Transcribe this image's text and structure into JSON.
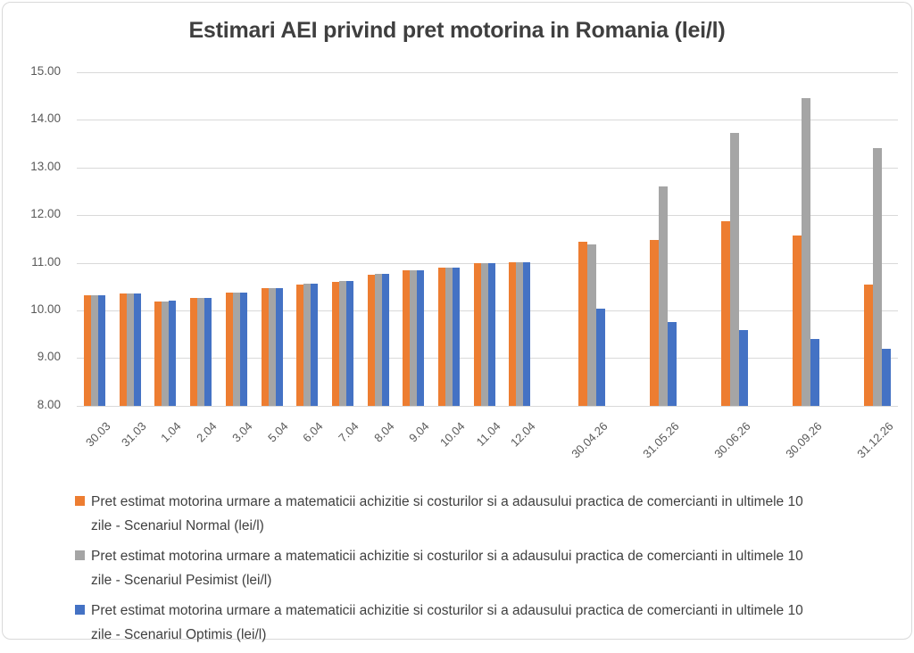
{
  "chart": {
    "title": "Estimari AEI privind pret motorina in Romania (lei/l)"
  },
  "chart_data": {
    "type": "bar",
    "title": "Estimari AEI privind pret motorina in Romania (lei/l)",
    "xlabel": "",
    "ylabel": "",
    "ylim": [
      8.0,
      15.0
    ],
    "ytick_step": 1.0,
    "ytick_labels": [
      "15.00",
      "14.00",
      "13.00",
      "12.00",
      "11.00",
      "10.00",
      "9.00",
      "8.00"
    ],
    "grid": true,
    "legend_position": "bottom",
    "categories": [
      "30.03",
      "31.03",
      "1.04",
      "2.04",
      "3.04",
      "5.04",
      "6.04",
      "7.04",
      "8.04",
      "9.04",
      "10.04",
      "11.04",
      "12.04",
      "30.04.26",
      "31.05.26",
      "30.06.26",
      "30.09.26",
      "31.12.26"
    ],
    "series": [
      {
        "name": "Pret estimat motorina urmare a matematicii achizitie si costurilor si a adausului practica de comercianti in ultimele 10 zile - Scenariul Normal (lei/l)",
        "color": "#ED7D31",
        "values": [
          10.31,
          10.35,
          10.19,
          10.27,
          10.38,
          10.46,
          10.55,
          10.6,
          10.75,
          10.84,
          10.89,
          10.99,
          11.01,
          11.45,
          11.47,
          11.88,
          11.57,
          10.54
        ]
      },
      {
        "name": "Pret estimat motorina urmare a matematicii achizitie si costurilor si a adausului practica de comercianti in ultimele 10 zile - Scenariul Pesimist (lei/l)",
        "color": "#A5A5A5",
        "values": [
          10.31,
          10.35,
          10.19,
          10.27,
          10.38,
          10.46,
          10.56,
          10.61,
          10.76,
          10.84,
          10.89,
          11.0,
          11.01,
          11.38,
          12.61,
          13.73,
          14.46,
          13.41
        ]
      },
      {
        "name": "Pret estimat motorina urmare a matematicii achizitie si costurilor si a adausului practica de comercianti in ultimele 10 zile - Scenariul Optimis (lei/l)",
        "color": "#4472C4",
        "values": [
          10.32,
          10.36,
          10.2,
          10.27,
          10.38,
          10.47,
          10.56,
          10.61,
          10.76,
          10.84,
          10.9,
          11.0,
          11.01,
          10.03,
          9.76,
          9.59,
          9.4,
          9.2
        ]
      }
    ]
  },
  "colors": {
    "title_text": "#3f3f3f",
    "axis_text": "#595959",
    "gridline": "#d9d9d9",
    "series_normal": "#ED7D31",
    "series_pesimist": "#A5A5A5",
    "series_optimis": "#4472C4"
  }
}
